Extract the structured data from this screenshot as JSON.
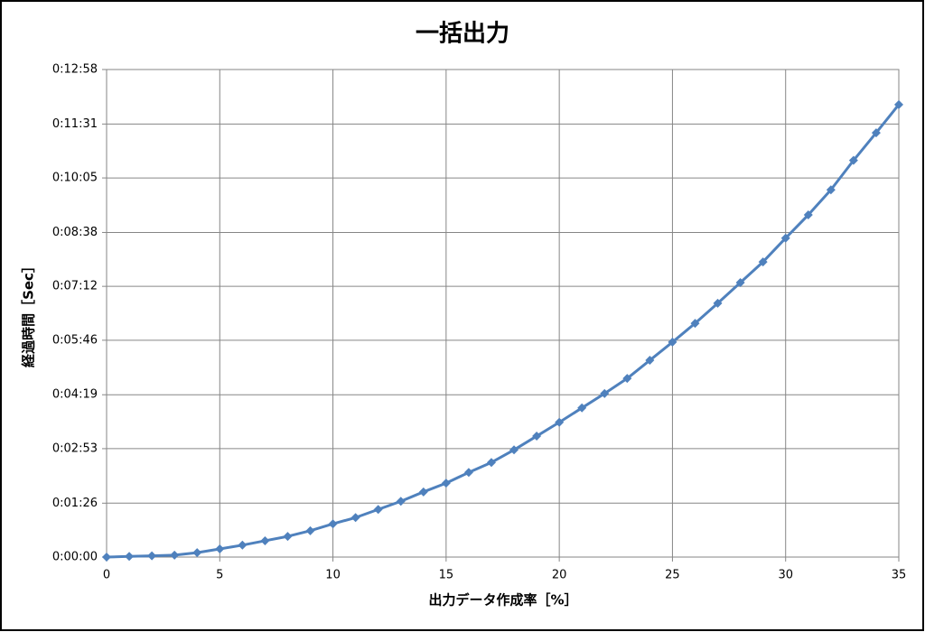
{
  "chart_data": {
    "type": "line",
    "title": "一括出力",
    "x_label": "出力データ作成率［%］",
    "y_label": "経過時間［Sec］",
    "x": [
      0,
      1,
      2,
      3,
      4,
      5,
      6,
      7,
      8,
      9,
      10,
      11,
      12,
      13,
      14,
      15,
      16,
      17,
      18,
      19,
      20,
      21,
      22,
      23,
      24,
      25,
      26,
      27,
      28,
      29,
      30,
      31,
      32,
      33,
      34,
      35
    ],
    "series": [
      {
        "color": "#4f81bd",
        "values": [
          0,
          1,
          2,
          3,
          7,
          13,
          19,
          26,
          33,
          42,
          53,
          63,
          76,
          89,
          104,
          118,
          135,
          151,
          171,
          193,
          215,
          238,
          261,
          285,
          314,
          343,
          373,
          405,
          438,
          471,
          509,
          546,
          586,
          633,
          677,
          722
        ]
      }
    ],
    "xlim": [
      0,
      35
    ],
    "xticks": [
      0,
      5,
      10,
      15,
      20,
      25,
      30,
      35
    ],
    "ylim": [
      0,
      778
    ],
    "yticks": [
      {
        "value": 0,
        "label": "0:00:00"
      },
      {
        "value": 86,
        "label": "0:01:26"
      },
      {
        "value": 173,
        "label": "0:02:53"
      },
      {
        "value": 259,
        "label": "0:04:19"
      },
      {
        "value": 346,
        "label": "0:05:46"
      },
      {
        "value": 432,
        "label": "0:07:12"
      },
      {
        "value": 518,
        "label": "0:08:38"
      },
      {
        "value": 605,
        "label": "0:10:05"
      },
      {
        "value": 691,
        "label": "0:11:31"
      },
      {
        "value": 778,
        "label": "0:12:58"
      }
    ],
    "grid": true
  }
}
